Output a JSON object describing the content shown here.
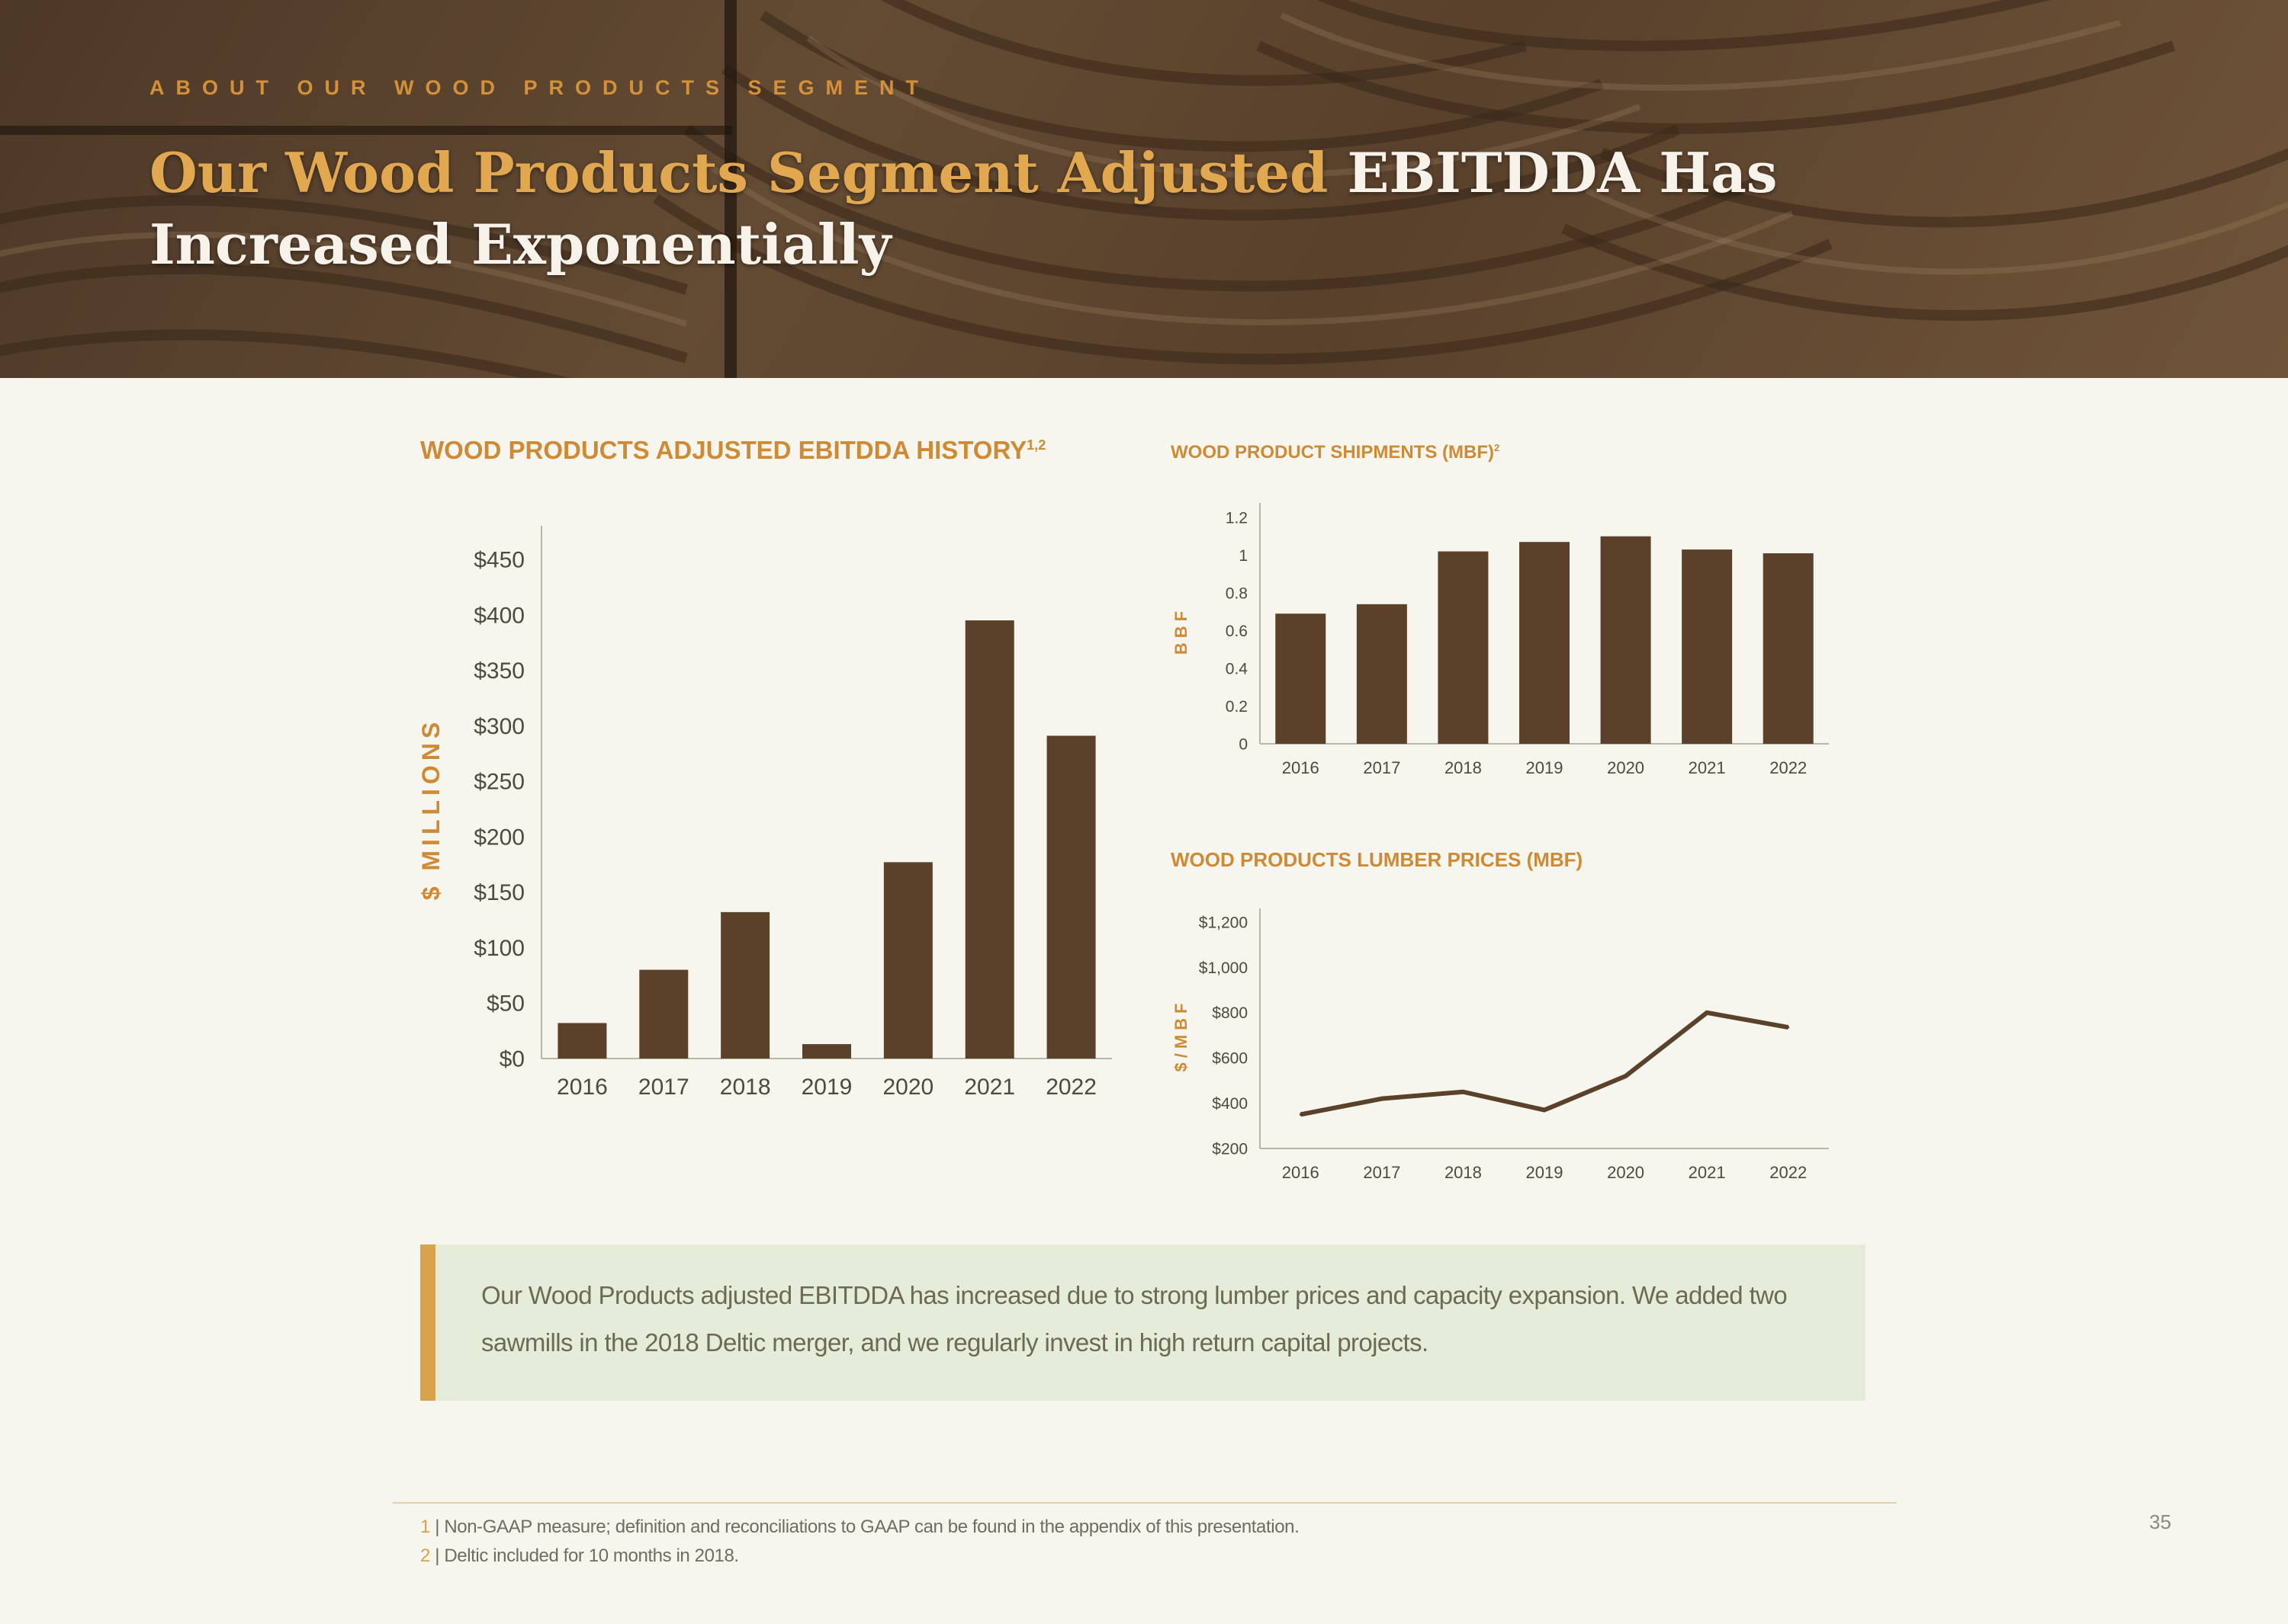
{
  "header": {
    "eyebrow": "ABOUT OUR WOOD PRODUCTS SEGMENT",
    "title_accent": "Our Wood Products Segment Adjusted",
    "title_rest_line1": " EBITDDA Has",
    "title_line2": "Increased Exponentially"
  },
  "charts": {
    "ebitda": {
      "title": "WOOD PRODUCTS ADJUSTED EBITDDA HISTORY",
      "title_sup": "1,2",
      "ylabel": "$ MILLIONS"
    },
    "shipments": {
      "title": "WOOD PRODUCT SHIPMENTS (MBF)",
      "title_sup": "2",
      "ylabel": "BBF"
    },
    "lumber": {
      "title": "WOOD PRODUCTS LUMBER PRICES (MBF)",
      "ylabel": "$/MBF"
    }
  },
  "chart_data": [
    {
      "type": "bar",
      "title": "WOOD PRODUCTS ADJUSTED EBITDDA HISTORY",
      "ylabel": "$ MILLIONS",
      "categories": [
        "2016",
        "2017",
        "2018",
        "2019",
        "2020",
        "2021",
        "2022"
      ],
      "values": [
        32,
        80,
        132,
        13,
        177,
        395,
        291
      ],
      "ylim": [
        0,
        450
      ],
      "yticks": [
        0,
        50,
        100,
        150,
        200,
        250,
        300,
        350,
        400,
        450
      ],
      "ytick_labels": [
        "$0",
        "$50",
        "$100",
        "$150",
        "$200",
        "$250",
        "$300",
        "$350",
        "$400",
        "$450"
      ],
      "grid": false
    },
    {
      "type": "bar",
      "title": "WOOD PRODUCT SHIPMENTS (MBF)",
      "ylabel": "BBF",
      "categories": [
        "2016",
        "2017",
        "2018",
        "2019",
        "2020",
        "2021",
        "2022"
      ],
      "values": [
        0.69,
        0.74,
        1.02,
        1.07,
        1.1,
        1.03,
        1.01
      ],
      "ylim": [
        0,
        1.2
      ],
      "yticks": [
        0,
        0.2,
        0.4,
        0.6,
        0.8,
        1,
        1.2
      ],
      "ytick_labels": [
        "0",
        "0.2",
        "0.4",
        "0.6",
        "0.8",
        "1",
        "1.2"
      ],
      "grid": false
    },
    {
      "type": "line",
      "title": "WOOD PRODUCTS LUMBER PRICES (MBF)",
      "ylabel": "$/MBF",
      "categories": [
        "2016",
        "2017",
        "2018",
        "2019",
        "2020",
        "2021",
        "2022"
      ],
      "values": [
        350,
        420,
        450,
        370,
        520,
        800,
        735
      ],
      "ylim": [
        200,
        1200
      ],
      "yticks": [
        200,
        400,
        600,
        800,
        1000,
        1200
      ],
      "ytick_labels": [
        "$200",
        "$400",
        "$600",
        "$800",
        "$1,000",
        "$1,200"
      ],
      "grid": false
    }
  ],
  "callout": {
    "text": "Our Wood Products adjusted EBITDDA has increased due to strong lumber prices and capacity expansion. We added two sawmills in the 2018 Deltic merger, and we regularly invest in high return capital projects."
  },
  "footnotes": [
    {
      "num": "1",
      "sep": " | ",
      "text": "Non-GAAP measure; definition and reconciliations to GAAP can be found in the appendix of this presentation."
    },
    {
      "num": "2",
      "sep": " | ",
      "text": "Deltic included for 10 months in 2018."
    }
  ],
  "page_number": "35",
  "colors": {
    "bar": "#5b4129",
    "accent": "#cf8a35",
    "header_title": "#f7f3ea",
    "header_accent": "#e2a84f",
    "callout_bg": "#e6ecda",
    "callout_border": "#d8a34b",
    "background": "#f6f6ee"
  }
}
